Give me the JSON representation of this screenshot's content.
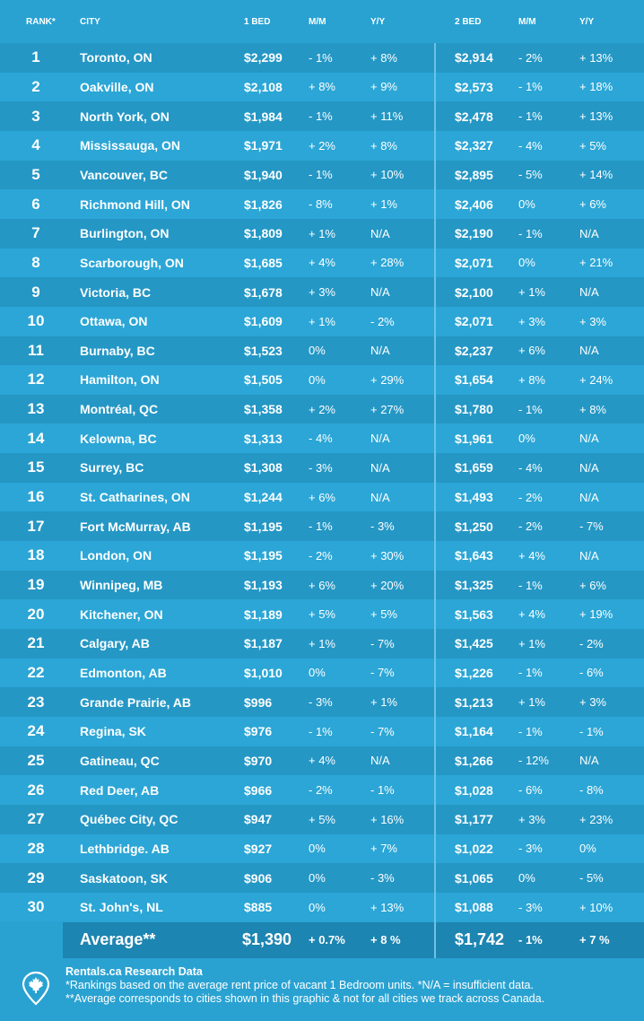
{
  "header": [
    "RANK*",
    "CITY",
    "1 BED",
    "M/M",
    "Y/Y",
    "2 BED",
    "M/M",
    "Y/Y"
  ],
  "rows": [
    [
      "1",
      "Toronto, ON",
      "$2,299",
      "- 1%",
      "+ 8%",
      "$2,914",
      "- 2%",
      "+ 13%"
    ],
    [
      "2",
      "Oakville, ON",
      "$2,108",
      "+ 8%",
      "+ 9%",
      "$2,573",
      "- 1%",
      "+ 18%"
    ],
    [
      "3",
      "North York, ON",
      "$1,984",
      "- 1%",
      "+ 11%",
      "$2,478",
      "- 1%",
      "+ 13%"
    ],
    [
      "4",
      "Mississauga, ON",
      "$1,971",
      "+ 2%",
      "+ 8%",
      "$2,327",
      "- 4%",
      "+ 5%"
    ],
    [
      "5",
      "Vancouver, BC",
      "$1,940",
      "- 1%",
      "+ 10%",
      "$2,895",
      "- 5%",
      "+ 14%"
    ],
    [
      "6",
      "Richmond Hill, ON",
      "$1,826",
      "- 8%",
      "+ 1%",
      "$2,406",
      "0%",
      "+ 6%"
    ],
    [
      "7",
      "Burlington, ON",
      "$1,809",
      "+ 1%",
      "N/A",
      "$2,190",
      "- 1%",
      "N/A"
    ],
    [
      "8",
      "Scarborough, ON",
      "$1,685",
      "+ 4%",
      "+ 28%",
      "$2,071",
      "0%",
      "+ 21%"
    ],
    [
      "9",
      "Victoria, BC",
      "$1,678",
      "+ 3%",
      "N/A",
      "$2,100",
      "+ 1%",
      "N/A"
    ],
    [
      "10",
      "Ottawa, ON",
      "$1,609",
      "+ 1%",
      "- 2%",
      "$2,071",
      "+ 3%",
      "+ 3%"
    ],
    [
      "11",
      "Burnaby, BC",
      "$1,523",
      "0%",
      "N/A",
      "$2,237",
      "+ 6%",
      "N/A"
    ],
    [
      "12",
      "Hamilton, ON",
      "$1,505",
      "0%",
      "+ 29%",
      "$1,654",
      "+ 8%",
      "+ 24%"
    ],
    [
      "13",
      "Montréal, QC",
      "$1,358",
      "+ 2%",
      "+ 27%",
      "$1,780",
      "- 1%",
      "+ 8%"
    ],
    [
      "14",
      "Kelowna, BC",
      "$1,313",
      "- 4%",
      "N/A",
      "$1,961",
      "0%",
      "N/A"
    ],
    [
      "15",
      "Surrey, BC",
      "$1,308",
      "- 3%",
      "N/A",
      "$1,659",
      "- 4%",
      "N/A"
    ],
    [
      "16",
      "St. Catharines, ON",
      "$1,244",
      "+ 6%",
      "N/A",
      "$1,493",
      "- 2%",
      "N/A"
    ],
    [
      "17",
      "Fort McMurray, AB",
      "$1,195",
      "- 1%",
      "- 3%",
      "$1,250",
      "- 2%",
      "- 7%"
    ],
    [
      "18",
      "London, ON",
      "$1,195",
      "- 2%",
      "+ 30%",
      "$1,643",
      "+ 4%",
      "N/A"
    ],
    [
      "19",
      "Winnipeg, MB",
      "$1,193",
      "+ 6%",
      "+ 20%",
      "$1,325",
      "- 1%",
      "+ 6%"
    ],
    [
      "20",
      "Kitchener, ON",
      "$1,189",
      "+ 5%",
      "+ 5%",
      "$1,563",
      "+ 4%",
      "+ 19%"
    ],
    [
      "21",
      "Calgary, AB",
      "$1,187",
      "+ 1%",
      "- 7%",
      "$1,425",
      "+ 1%",
      "- 2%"
    ],
    [
      "22",
      "Edmonton, AB",
      "$1,010",
      "0%",
      "- 7%",
      "$1,226",
      "- 1%",
      "- 6%"
    ],
    [
      "23",
      "Grande Prairie, AB",
      "$996",
      "- 3%",
      "+ 1%",
      "$1,213",
      "+ 1%",
      "+ 3%"
    ],
    [
      "24",
      "Regina, SK",
      "$976",
      "- 1%",
      "- 7%",
      "$1,164",
      "- 1%",
      "- 1%"
    ],
    [
      "25",
      "Gatineau, QC",
      "$970",
      "+ 4%",
      "N/A",
      "$1,266",
      "- 12%",
      "N/A"
    ],
    [
      "26",
      "Red Deer, AB",
      "$966",
      "- 2%",
      "- 1%",
      "$1,028",
      "- 6%",
      "- 8%"
    ],
    [
      "27",
      "Québec City, QC",
      "$947",
      "+ 5%",
      "+ 16%",
      "$1,177",
      "+ 3%",
      "+ 23%"
    ],
    [
      "28",
      "Lethbridge. AB",
      "$927",
      "0%",
      "+ 7%",
      "$1,022",
      "- 3%",
      "0%"
    ],
    [
      "29",
      "Saskatoon, SK",
      "$906",
      "0%",
      "- 3%",
      "$1,065",
      "0%",
      "- 5%"
    ],
    [
      "30",
      "St. John's, NL",
      "$885",
      "0%",
      "+ 13%",
      "$1,088",
      "- 3%",
      "+ 10%"
    ]
  ],
  "average": [
    "Average**",
    "$1,390",
    "+ 0.7%",
    "+ 8 %",
    "$1,742",
    "- 1%",
    "+ 7 %"
  ],
  "footer": {
    "title": "Rentals.ca Research Data",
    "notes": [
      "*Rankings based on the average rent price of vacant 1 Bedroom units. *N/A = insufficient data.",
      "**Average corresponds to cities shown in this graphic & not for all cities we track across Canada."
    ]
  }
}
